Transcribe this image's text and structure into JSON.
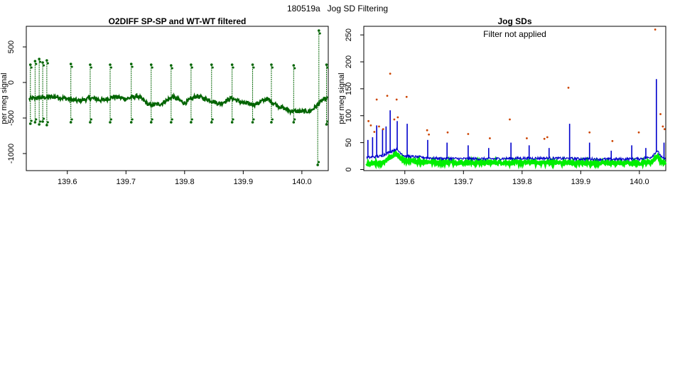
{
  "page_title": "180519a   Jog SD Filtering",
  "chart_data": [
    {
      "type": "scatter",
      "title": "O2DIFF SP-SP and WT-WT filtered",
      "xlabel": "",
      "ylabel": "per meg signal",
      "xlim": [
        139.53,
        140.045
      ],
      "ylim": [
        -1240,
        790
      ],
      "x_ticks": [
        139.6,
        139.7,
        139.8,
        139.9,
        140.0
      ],
      "x_tick_labels": [
        "139.6",
        "139.7",
        "139.8",
        "139.9",
        "140.0"
      ],
      "y_ticks": [
        500,
        0,
        -500,
        -1000
      ],
      "y_tick_labels": [
        "500",
        "0",
        "-500",
        "-1000"
      ],
      "grid": false,
      "series": [
        {
          "color": "#006400",
          "baseline": [
            [
              139.535,
              -230
            ],
            [
              139.56,
              -210
            ],
            [
              139.58,
              -200
            ],
            [
              139.6,
              -230
            ],
            [
              139.62,
              -260
            ],
            [
              139.64,
              -220
            ],
            [
              139.66,
              -250
            ],
            [
              139.68,
              -200
            ],
            [
              139.7,
              -230
            ],
            [
              139.72,
              -190
            ],
            [
              139.74,
              -320
            ],
            [
              139.76,
              -300
            ],
            [
              139.78,
              -200
            ],
            [
              139.8,
              -290
            ],
            [
              139.82,
              -190
            ],
            [
              139.84,
              -240
            ],
            [
              139.86,
              -300
            ],
            [
              139.88,
              -220
            ],
            [
              139.9,
              -290
            ],
            [
              139.92,
              -310
            ],
            [
              139.94,
              -230
            ],
            [
              139.96,
              -330
            ],
            [
              139.98,
              -400
            ],
            [
              140.0,
              -410
            ],
            [
              140.015,
              -400
            ],
            [
              140.025,
              -330
            ],
            [
              140.035,
              -250
            ],
            [
              140.045,
              -220
            ]
          ],
          "spikes_high": [
            [
              139.537,
              250
            ],
            [
              139.545,
              300
            ],
            [
              139.552,
              330
            ],
            [
              139.558,
              280
            ],
            [
              139.565,
              310
            ],
            [
              139.606,
              260
            ],
            [
              139.639,
              250
            ],
            [
              139.673,
              250
            ],
            [
              139.709,
              260
            ],
            [
              139.743,
              250
            ],
            [
              139.777,
              240
            ],
            [
              139.811,
              250
            ],
            [
              139.846,
              250
            ],
            [
              139.881,
              250
            ],
            [
              139.916,
              250
            ],
            [
              139.948,
              250
            ],
            [
              139.986,
              240
            ],
            [
              140.029,
              730
            ],
            [
              140.042,
              250
            ]
          ],
          "spikes_low": [
            [
              139.537,
              -580
            ],
            [
              139.545,
              -560
            ],
            [
              139.552,
              -590
            ],
            [
              139.558,
              -550
            ],
            [
              139.565,
              -600
            ],
            [
              139.606,
              -560
            ],
            [
              139.639,
              -560
            ],
            [
              139.673,
              -560
            ],
            [
              139.709,
              -560
            ],
            [
              139.743,
              -560
            ],
            [
              139.777,
              -560
            ],
            [
              139.811,
              -560
            ],
            [
              139.846,
              -560
            ],
            [
              139.881,
              -560
            ],
            [
              139.916,
              -560
            ],
            [
              139.948,
              -560
            ],
            [
              139.986,
              -560
            ],
            [
              140.027,
              -1160
            ],
            [
              140.042,
              -590
            ]
          ]
        }
      ]
    },
    {
      "type": "line",
      "title": "Jog SDs",
      "annotation": "Filter not applied",
      "xlabel": "",
      "ylabel": "per meg signal",
      "xlim": [
        139.53,
        140.045
      ],
      "ylim": [
        -2,
        266
      ],
      "x_ticks": [
        139.6,
        139.7,
        139.8,
        139.9,
        140.0
      ],
      "x_tick_labels": [
        "139.6",
        "139.7",
        "139.8",
        "139.9",
        "140.0"
      ],
      "y_ticks": [
        0,
        50,
        100,
        150,
        200,
        250
      ],
      "y_tick_labels": [
        "0",
        "50",
        "100",
        "150",
        "200",
        "250"
      ],
      "grid": false,
      "series": [
        {
          "color": "#00ee00",
          "baseline": [
            [
              139.535,
              10
            ],
            [
              139.56,
              12
            ],
            [
              139.575,
              22
            ],
            [
              139.585,
              28
            ],
            [
              139.6,
              16
            ],
            [
              139.65,
              14
            ],
            [
              139.7,
              13
            ],
            [
              139.75,
              13
            ],
            [
              139.8,
              13
            ],
            [
              139.85,
              13
            ],
            [
              139.9,
              12
            ],
            [
              139.95,
              12
            ],
            [
              140.0,
              12
            ],
            [
              140.02,
              14
            ],
            [
              140.03,
              25
            ],
            [
              140.04,
              12
            ]
          ]
        },
        {
          "color": "#0000cc",
          "baseline": [
            [
              139.535,
              22
            ],
            [
              139.56,
              25
            ],
            [
              139.575,
              33
            ],
            [
              139.585,
              38
            ],
            [
              139.6,
              25
            ],
            [
              139.65,
              21
            ],
            [
              139.7,
              20
            ],
            [
              139.75,
              20
            ],
            [
              139.8,
              21
            ],
            [
              139.85,
              21
            ],
            [
              139.9,
              20
            ],
            [
              139.95,
              19
            ],
            [
              140.0,
              20
            ],
            [
              140.02,
              23
            ],
            [
              140.03,
              35
            ],
            [
              140.04,
              20
            ]
          ],
          "spikes": [
            [
              139.537,
              55
            ],
            [
              139.545,
              60
            ],
            [
              139.552,
              82
            ],
            [
              139.562,
              75
            ],
            [
              139.568,
              80
            ],
            [
              139.575,
              110
            ],
            [
              139.587,
              90
            ],
            [
              139.604,
              85
            ],
            [
              139.639,
              55
            ],
            [
              139.672,
              50
            ],
            [
              139.708,
              45
            ],
            [
              139.743,
              40
            ],
            [
              139.781,
              50
            ],
            [
              139.812,
              45
            ],
            [
              139.846,
              40
            ],
            [
              139.881,
              85
            ],
            [
              139.915,
              50
            ],
            [
              139.952,
              35
            ],
            [
              139.987,
              45
            ],
            [
              140.011,
              40
            ],
            [
              140.029,
              168
            ],
            [
              140.042,
              50
            ]
          ]
        },
        {
          "color": "#cc4400",
          "points": [
            [
              139.538,
              90
            ],
            [
              139.542,
              82
            ],
            [
              139.548,
              70
            ],
            [
              139.552,
              130
            ],
            [
              139.556,
              80
            ],
            [
              139.563,
              75
            ],
            [
              139.57,
              137
            ],
            [
              139.575,
              178
            ],
            [
              139.582,
              93
            ],
            [
              139.586,
              130
            ],
            [
              139.588,
              97
            ],
            [
              139.603,
              135
            ],
            [
              139.638,
              73
            ],
            [
              139.641,
              65
            ],
            [
              139.673,
              69
            ],
            [
              139.708,
              66
            ],
            [
              139.745,
              58
            ],
            [
              139.779,
              93
            ],
            [
              139.808,
              58
            ],
            [
              139.838,
              57
            ],
            [
              139.843,
              60
            ],
            [
              139.879,
              152
            ],
            [
              139.915,
              69
            ],
            [
              139.954,
              53
            ],
            [
              139.999,
              69
            ],
            [
              140.027,
              260
            ],
            [
              140.036,
              103
            ],
            [
              140.04,
              80
            ],
            [
              140.043,
              75
            ]
          ]
        }
      ]
    }
  ]
}
